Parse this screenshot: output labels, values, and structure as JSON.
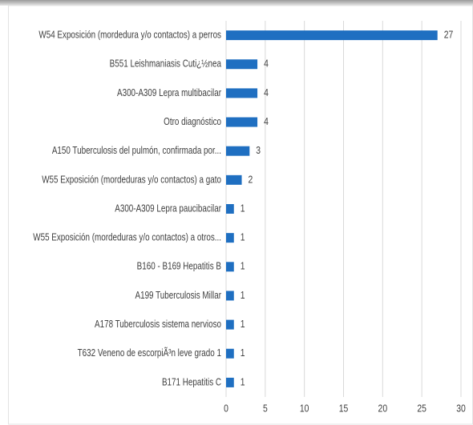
{
  "chart_data": {
    "type": "bar",
    "orientation": "horizontal",
    "categories": [
      "W54 Exposición (mordedura y/o contactos) a perros",
      "B551 Leishmaniasis Cuti¿½nea",
      "A300-A309 Lepra multibacilar",
      "Otro diagnóstico",
      "A150 Tuberculosis del pulmón, confirmada por...",
      "W55 Exposición (mordeduras y/o contactos) a gato",
      "A300-A309 Lepra paucibacilar",
      "W55 Exposición (mordeduras y/o contactos) a otros...",
      "B160 - B169 Hepatitis B",
      "A199 Tuberculosis Millar",
      "A178 Tuberculosis sistema nervioso",
      "T632 Veneno de escorpiÃ³n leve grado 1",
      "B171 Hepatitis C"
    ],
    "values": [
      27,
      4,
      4,
      4,
      3,
      2,
      1,
      1,
      1,
      1,
      1,
      1,
      1
    ],
    "color": "#1f6fc1",
    "xlim": [
      0,
      30
    ],
    "xticks": [
      0,
      5,
      10,
      15,
      20,
      25,
      30
    ],
    "grid": true
  }
}
